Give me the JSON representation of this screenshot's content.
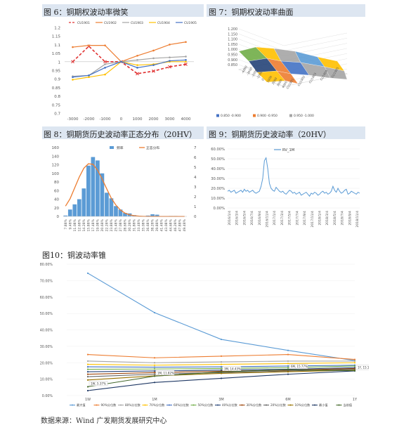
{
  "page": {
    "source": "数据来源：Wind  广发期货发展研究中心"
  },
  "chart_data": [
    {
      "id": "fig6",
      "type": "line",
      "title": "图 6：铜期权波动率微笑",
      "x": [
        -3000,
        -2000,
        -1000,
        0,
        1000,
        2000,
        3000,
        4000
      ],
      "x_ticks": [
        "-3000",
        "-2000",
        "-1000",
        "0",
        "1000",
        "2000",
        "3000",
        "4000"
      ],
      "ylim": [
        0.7,
        1.2
      ],
      "y_ticks": [
        "0.7",
        "0.75",
        "0.8",
        "0.85",
        "0.9",
        "0.95",
        "1",
        "1.05",
        "1.1",
        "1.15",
        "1.2"
      ],
      "legend_position": "top",
      "series": [
        {
          "name": "CU1901",
          "color": "#e03030",
          "dashed": true,
          "marker": "x",
          "values": [
            1.0,
            1.09,
            1.0,
            1.0,
            0.93,
            0.945,
            0.97,
            0.985
          ]
        },
        {
          "name": "CU1902",
          "color": "#ed7d31",
          "dashed": false,
          "marker": "circle",
          "values": [
            1.085,
            1.095,
            1.095,
            1.0,
            1.035,
            1.065,
            1.1,
            1.115
          ]
        },
        {
          "name": "CU1903",
          "color": "#a5a5a5",
          "dashed": false,
          "marker": "circle",
          "values": [
            0.915,
            0.92,
            0.985,
            1.0,
            1.01,
            1.02,
            1.025,
            1.03
          ]
        },
        {
          "name": "CU1904",
          "color": "#ffc000",
          "dashed": false,
          "marker": "circle",
          "values": [
            0.895,
            0.91,
            0.925,
            1.0,
            0.98,
            0.985,
            1.0,
            1.0
          ]
        },
        {
          "name": "CU1905",
          "color": "#4472c4",
          "dashed": false,
          "marker": "circle",
          "values": [
            0.91,
            0.92,
            0.965,
            1.0,
            0.965,
            0.98,
            1.005,
            1.01
          ]
        }
      ]
    },
    {
      "id": "fig7",
      "type": "surface",
      "title": "图 7：铜期权波动率曲面",
      "z_ticks": [
        "1.200",
        "1.150",
        "1.100",
        "1.050",
        "1.000",
        "0.950",
        "0.900",
        "0.850"
      ],
      "x_ticks": [
        "-4000",
        "-3000",
        "-2000",
        "-1000",
        "0",
        "1000",
        "2000",
        "3000",
        "4000"
      ],
      "y_ticks": [
        "CU1901",
        "CU1902",
        "CU1903",
        "CU1904",
        "CU1905"
      ],
      "legend": [
        {
          "label": "0.850 -0.900",
          "color": "#4472c4"
        },
        {
          "label": "0.900 -0.950",
          "color": "#ed7d31"
        },
        {
          "label": "0.950 -1.000",
          "color": "#a5a5a5"
        }
      ],
      "extra_colors": [
        "#ffc000",
        "#5b9bd5",
        "#70ad47",
        "#264478"
      ]
    },
    {
      "id": "fig8",
      "type": "bar",
      "title": "图 8：铜期货历史波动率正态分布（20HV）",
      "categories": [
        "7.88%",
        "9.48%",
        "11.08%",
        "12.68%",
        "14.28%",
        "15.88%",
        "17.48%",
        "19.08%",
        "20.68%",
        "22.28%",
        "23.88%",
        "25.48%",
        "27.08%",
        "28.68%",
        "30.28%",
        "31.88%",
        "33.48%",
        "35.08%",
        "36.68%",
        "38.28%",
        "39.88%",
        "41.48%",
        "43.08%",
        "44.68%",
        "46.28%",
        "47.88%",
        "49.48%"
      ],
      "category_labels": [
        "7.88%",
        "9.48%",
        "11.08%",
        "12.68%",
        "14.28%",
        "15.88%",
        "17.48%",
        "19.08%",
        "20.68%",
        "22.28%",
        "23.88%",
        "25.48%",
        "27.08%",
        "28.68%",
        "30.28%",
        "31.88%",
        "33.48%",
        "35.08%",
        "36.68%",
        "38.28%",
        "39.88%",
        "41.48%",
        "43.08%",
        "44.68%",
        "46.28%",
        "47.88%",
        "49.48%"
      ],
      "values": [
        2,
        16,
        28,
        40,
        65,
        118,
        138,
        130,
        100,
        55,
        42,
        24,
        16,
        8,
        7,
        3,
        0,
        0,
        2,
        5,
        4,
        0,
        0,
        1,
        1,
        0,
        0
      ],
      "normal_curve": [
        1.05,
        1.8,
        2.9,
        4.0,
        4.9,
        5.35,
        5.3,
        4.7,
        3.8,
        2.8,
        1.85,
        1.15,
        0.65,
        0.33,
        0.16,
        0.07,
        0.03,
        0.01,
        0,
        0,
        0,
        0,
        0,
        0,
        0,
        0,
        0
      ],
      "ylim": [
        0,
        160
      ],
      "y_ticks": [
        "0",
        "20",
        "40",
        "60",
        "80",
        "100",
        "120",
        "140",
        "160"
      ],
      "y2lim": [
        0,
        7
      ],
      "y2_ticks": [
        "0",
        "1",
        "2",
        "3",
        "4",
        "5",
        "6",
        "7"
      ],
      "legend": [
        {
          "label": "频率",
          "color": "#5b9bd5"
        },
        {
          "label": "正态分布",
          "color": "#ed7d31"
        }
      ]
    },
    {
      "id": "fig9",
      "type": "line",
      "title": "图 9：铜期货历史波动率（20HV）",
      "x_ticks": [
        "2016/1/4",
        "2016/3/4",
        "2016/5/4",
        "2016/7/4",
        "2016/9/4",
        "2016/11/4",
        "2017/1/4",
        "2017/3/4",
        "2017/5/4",
        "2017/7/4",
        "2017/9/4",
        "2017/11/4",
        "2018/1/4",
        "2018/3/4",
        "2018/5/4",
        "2018/7/4",
        "2018/9/4",
        "2018/11/4"
      ],
      "ylim": [
        0,
        60
      ],
      "y_ticks": [
        "0.00%",
        "10.00%",
        "20.00%",
        "30.00%",
        "40.00%",
        "50.00%",
        "60.00%"
      ],
      "legend_position": "top",
      "series": [
        {
          "name": "RV_1M",
          "color": "#5b9bd5",
          "values": [
            17,
            18,
            16,
            17,
            18,
            15,
            16,
            17,
            18,
            16,
            19,
            17,
            18,
            16,
            17,
            18,
            16,
            15,
            16,
            17,
            22,
            30,
            48,
            51,
            40,
            25,
            20,
            18,
            17,
            21,
            19,
            17,
            16,
            17,
            15,
            14,
            16,
            18,
            17,
            15,
            16,
            14,
            15,
            16,
            13,
            14,
            15,
            16,
            14,
            12,
            15,
            14,
            16,
            15,
            13,
            14,
            16,
            17,
            15,
            16,
            14,
            15,
            17,
            22,
            18,
            16,
            20,
            17,
            15,
            16,
            18,
            19,
            14,
            15,
            17,
            16,
            15,
            14,
            16,
            15
          ]
        }
      ]
    },
    {
      "id": "fig10",
      "type": "line",
      "title": "图10：铜波动率锥",
      "categories": [
        "1W",
        "1M",
        "3M",
        "6M",
        "1Y"
      ],
      "ylim": [
        0,
        80
      ],
      "y_ticks": [
        "0.00%",
        "10.00%",
        "20.00%",
        "30.00%",
        "40.00%",
        "50.00%",
        "60.00%",
        "70.00%",
        "80.00%"
      ],
      "legend_position": "bottom",
      "series": [
        {
          "name": "最大值",
          "color": "#5b9bd5",
          "values": [
            74.5,
            50.5,
            34.2,
            27.5,
            21.3
          ]
        },
        {
          "name": "90%分位数",
          "color": "#ed7d31",
          "values": [
            25.0,
            23.0,
            24.0,
            25.0,
            22.0
          ]
        },
        {
          "name": "80%分位数",
          "color": "#a5a5a5",
          "values": [
            21.0,
            20.0,
            20.5,
            21.0,
            21.0
          ]
        },
        {
          "name": "70%分位数",
          "color": "#ffc000",
          "values": [
            19.0,
            18.5,
            19.0,
            19.5,
            20.0
          ]
        },
        {
          "name": "60%分位数",
          "color": "#4472c4",
          "values": [
            17.5,
            17.3,
            17.5,
            18.0,
            18.5
          ]
        },
        {
          "name": "50%分位数",
          "color": "#70ad47",
          "values": [
            16.0,
            16.2,
            16.5,
            17.0,
            18.0
          ]
        },
        {
          "name": "40%分位数",
          "color": "#264478",
          "values": [
            14.5,
            15.0,
            15.5,
            16.0,
            17.0
          ]
        },
        {
          "name": "30%分位数",
          "color": "#9e480e",
          "values": [
            13.0,
            14.0,
            14.8,
            15.5,
            16.5
          ]
        },
        {
          "name": "20%分位数",
          "color": "#636363",
          "values": [
            11.5,
            13.0,
            14.0,
            15.0,
            16.0
          ]
        },
        {
          "name": "10%分位数",
          "color": "#997300",
          "values": [
            9.5,
            12.0,
            13.5,
            14.5,
            15.5
          ]
        },
        {
          "name": "最小值",
          "color": "#1f3864",
          "values": [
            3.0,
            8.0,
            10.5,
            13.0,
            15.0
          ]
        },
        {
          "name": "当前值",
          "color": "#43682b",
          "values": [
            5.37,
            11.82,
            14.43,
            15.77,
            15.14
          ]
        }
      ],
      "annotations": [
        "1W, 5.37%",
        "1M, 11.82%",
        "3M, 14.43%",
        "6M, 15.77%",
        "1Y, 15.14%"
      ]
    }
  ]
}
